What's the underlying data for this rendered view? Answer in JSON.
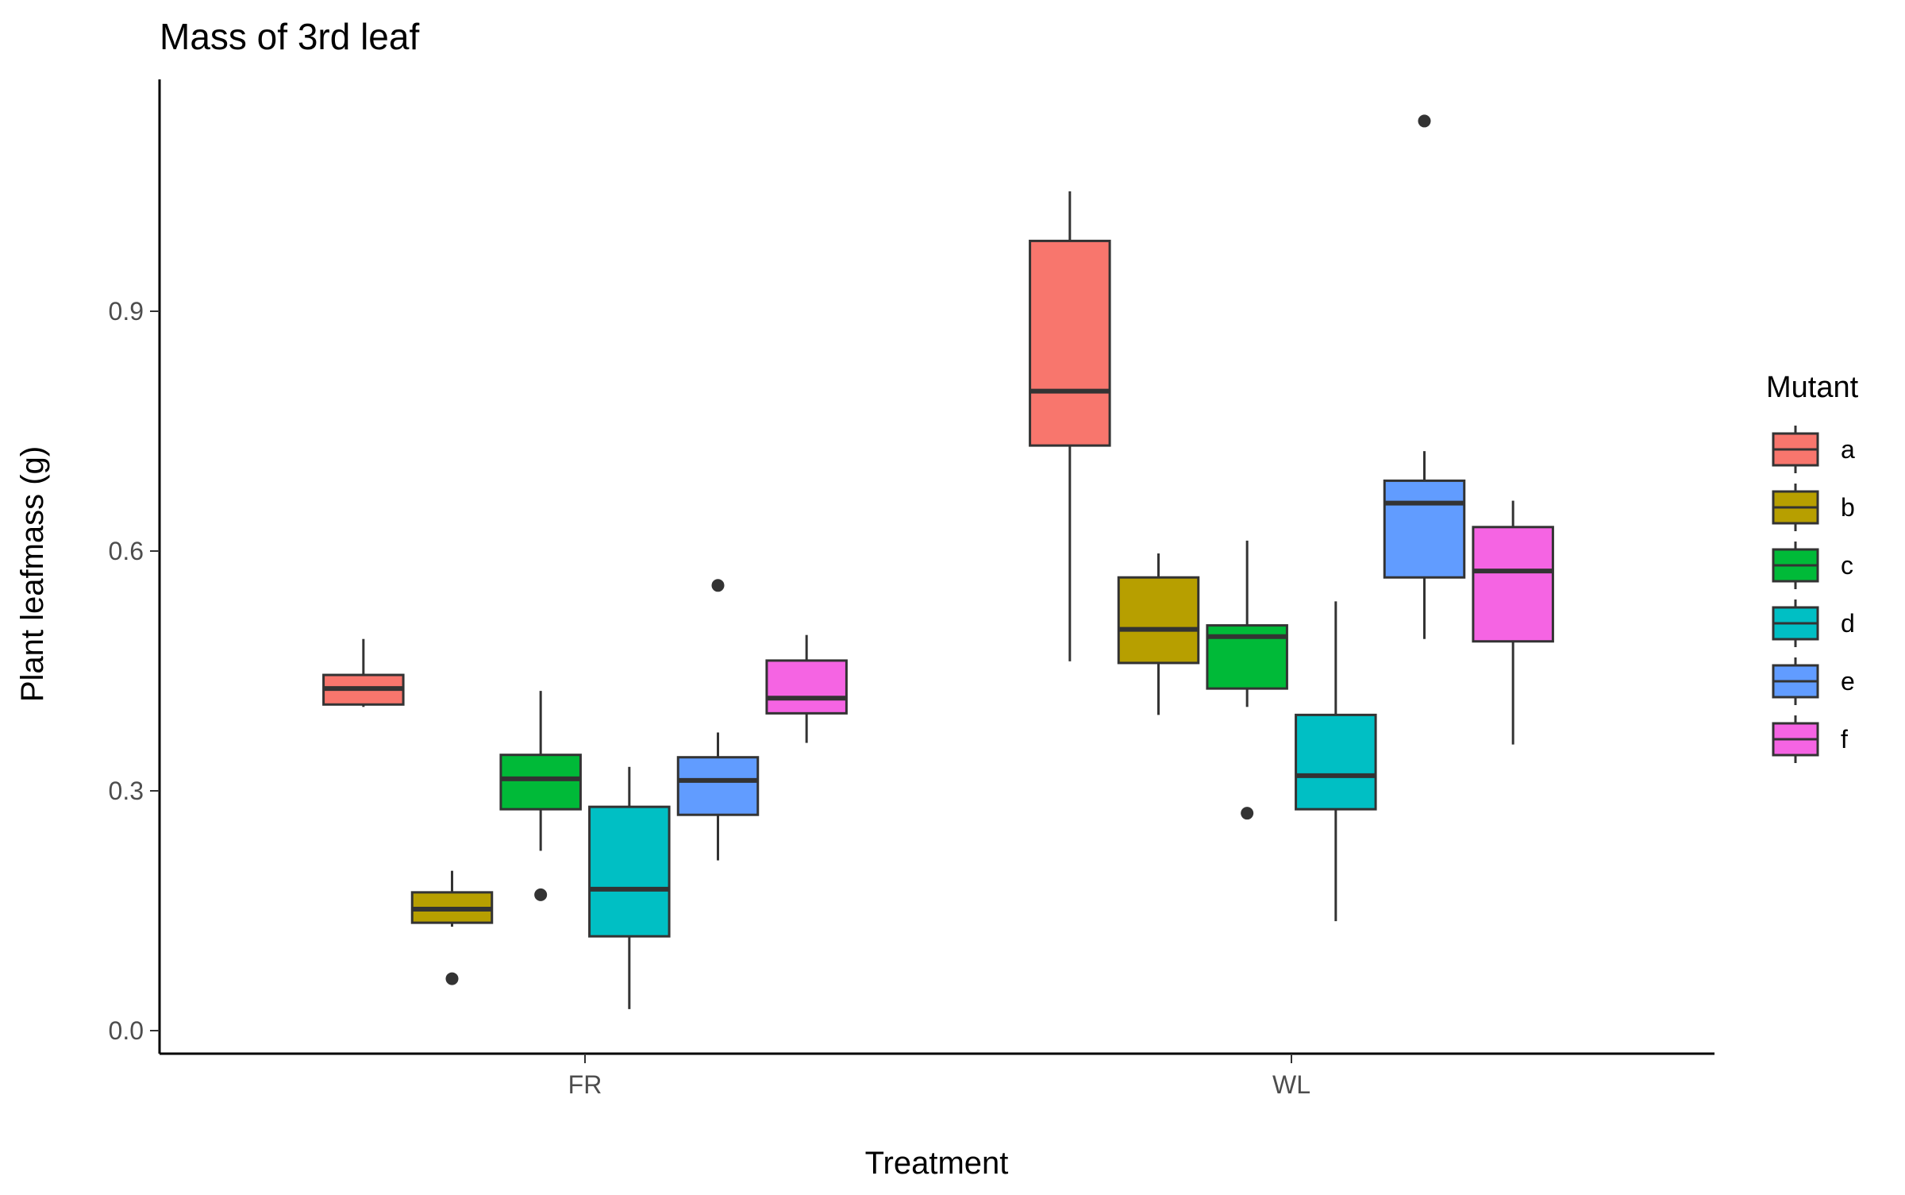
{
  "chart_data": {
    "type": "boxplot",
    "title": "Mass of 3rd leaf",
    "xlabel": "Treatment",
    "ylabel": "Plant leafmass (g)",
    "categories": [
      "FR",
      "WL"
    ],
    "ylim": [
      -0.03,
      1.2
    ],
    "yticks": [
      0.0,
      0.3,
      0.6,
      0.9
    ],
    "ytick_labels": [
      "0.0",
      "0.3",
      "0.6",
      "0.9"
    ],
    "grid": false,
    "legend": {
      "title": "Mutant",
      "position": "right"
    },
    "series": [
      {
        "name": "a",
        "color": "#F8766D",
        "boxes": [
          {
            "category": "FR",
            "whisker_low": 0.405,
            "q1": 0.408,
            "median": 0.428,
            "q3": 0.445,
            "whisker_high": 0.49,
            "outliers": []
          },
          {
            "category": "WL",
            "whisker_low": 0.462,
            "q1": 0.732,
            "median": 0.8,
            "q3": 0.988,
            "whisker_high": 1.05,
            "outliers": []
          }
        ]
      },
      {
        "name": "b",
        "color": "#B79F00",
        "boxes": [
          {
            "category": "FR",
            "whisker_low": 0.13,
            "q1": 0.135,
            "median": 0.152,
            "q3": 0.173,
            "whisker_high": 0.2,
            "outliers": [
              0.065
            ]
          },
          {
            "category": "WL",
            "whisker_low": 0.395,
            "q1": 0.46,
            "median": 0.502,
            "q3": 0.567,
            "whisker_high": 0.597,
            "outliers": []
          }
        ]
      },
      {
        "name": "c",
        "color": "#00BA38",
        "boxes": [
          {
            "category": "FR",
            "whisker_low": 0.225,
            "q1": 0.277,
            "median": 0.315,
            "q3": 0.345,
            "whisker_high": 0.425,
            "outliers": [
              0.17
            ]
          },
          {
            "category": "WL",
            "whisker_low": 0.405,
            "q1": 0.428,
            "median": 0.493,
            "q3": 0.507,
            "whisker_high": 0.613,
            "outliers": [
              0.272
            ]
          }
        ]
      },
      {
        "name": "d",
        "color": "#00BFC4",
        "boxes": [
          {
            "category": "FR",
            "whisker_low": 0.027,
            "q1": 0.118,
            "median": 0.177,
            "q3": 0.28,
            "whisker_high": 0.33,
            "outliers": []
          },
          {
            "category": "WL",
            "whisker_low": 0.137,
            "q1": 0.277,
            "median": 0.319,
            "q3": 0.395,
            "whisker_high": 0.537,
            "outliers": []
          }
        ]
      },
      {
        "name": "e",
        "color": "#619CFF",
        "boxes": [
          {
            "category": "FR",
            "whisker_low": 0.213,
            "q1": 0.27,
            "median": 0.313,
            "q3": 0.342,
            "whisker_high": 0.373,
            "outliers": [
              0.557
            ]
          },
          {
            "category": "WL",
            "whisker_low": 0.49,
            "q1": 0.567,
            "median": 0.66,
            "q3": 0.688,
            "whisker_high": 0.725,
            "outliers": [
              1.138
            ]
          }
        ]
      },
      {
        "name": "f",
        "color": "#F564E3",
        "boxes": [
          {
            "category": "FR",
            "whisker_low": 0.36,
            "q1": 0.397,
            "median": 0.416,
            "q3": 0.463,
            "whisker_high": 0.495,
            "outliers": []
          },
          {
            "category": "WL",
            "whisker_low": 0.358,
            "q1": 0.487,
            "median": 0.575,
            "q3": 0.63,
            "whisker_high": 0.663,
            "outliers": []
          }
        ]
      }
    ]
  }
}
